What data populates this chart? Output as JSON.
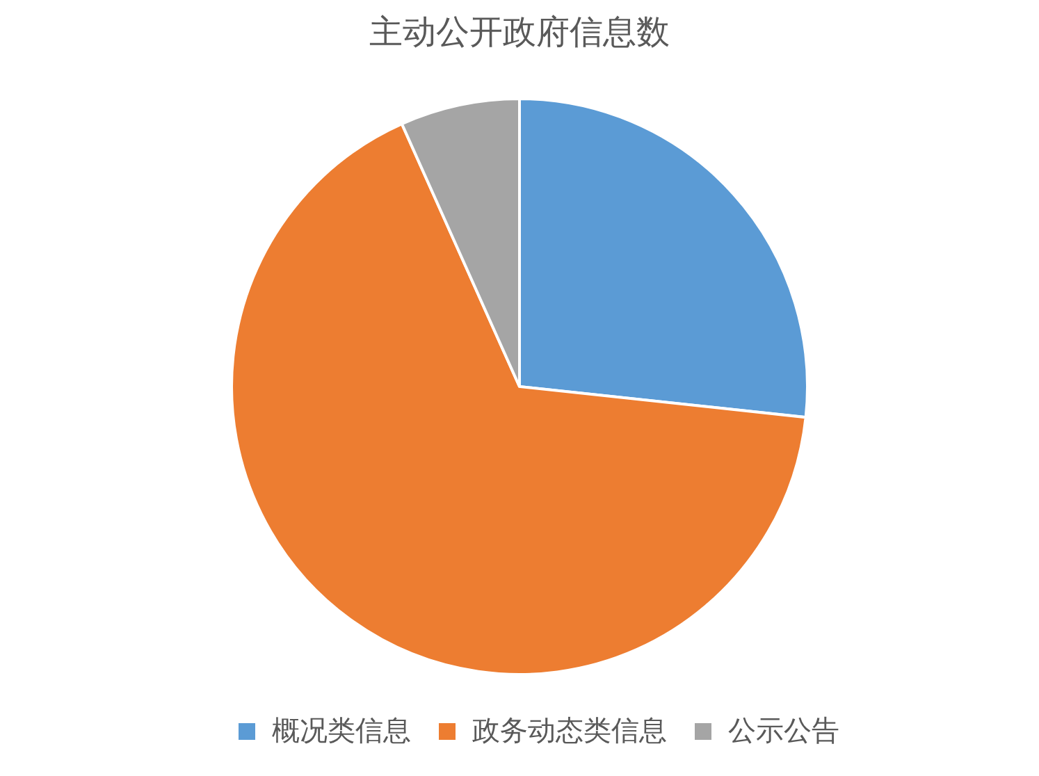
{
  "chart_data": {
    "type": "pie",
    "title": "主动公开政府信息数",
    "categories": [
      "概况类信息",
      "政务动态类信息",
      "公示公告"
    ],
    "values": [
      26.7,
      66.6,
      6.7
    ],
    "colors": [
      "#5b9bd5",
      "#ed7d31",
      "#a5a5a5"
    ],
    "legend": "bottom"
  }
}
